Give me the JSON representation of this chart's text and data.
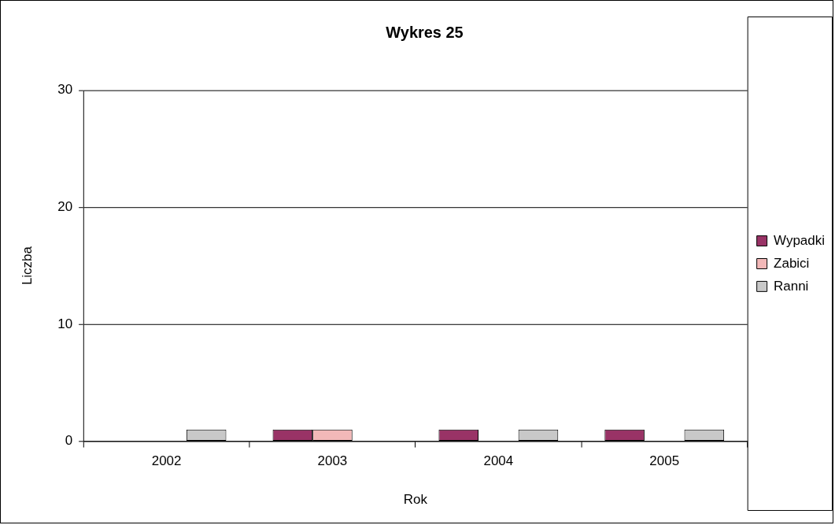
{
  "chart_data": {
    "type": "bar",
    "title": "Wykres 25",
    "xlabel": "Rok",
    "ylabel": "Liczba",
    "categories": [
      "2002",
      "2003",
      "2004",
      "2005"
    ],
    "series": [
      {
        "name": "Wypadki",
        "color": "#993366",
        "values": [
          0,
          1,
          1,
          1
        ]
      },
      {
        "name": "Zabici",
        "color": "#f2b8b8",
        "values": [
          0,
          1,
          0,
          0
        ]
      },
      {
        "name": "Ranni",
        "color": "#c8c8c8",
        "values": [
          1,
          0,
          1,
          1
        ]
      }
    ],
    "ylim": [
      0,
      30
    ],
    "yticks": [
      0,
      10,
      20,
      30
    ],
    "grid": "y",
    "legend": "right"
  }
}
